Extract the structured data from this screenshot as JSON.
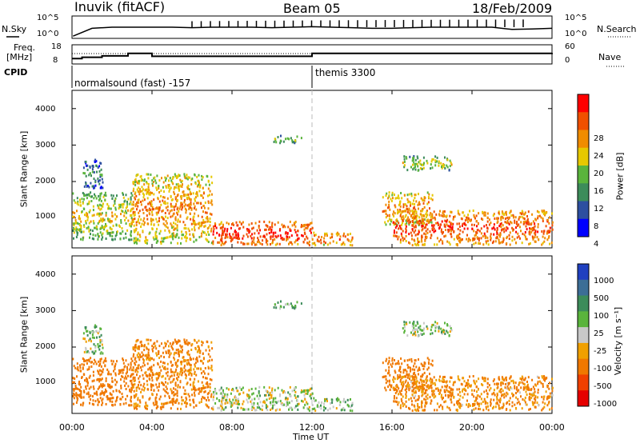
{
  "header": {
    "station": "Inuvik (fitACF)",
    "beam": "Beam 05",
    "date": "18/Feb/2009"
  },
  "noise_panel": {
    "left_label": "N.Sky",
    "right_label": "N.Search",
    "left_ticks": [
      "10^5",
      "10^0"
    ],
    "right_ticks": [
      "10^5",
      "10^0"
    ]
  },
  "freq_panel": {
    "left_label_1": "Freq.",
    "left_label_2": "[MHz]",
    "right_label": "Nave",
    "left_ticks": [
      "18",
      "8"
    ],
    "right_ticks": [
      "60",
      "0"
    ]
  },
  "cpid_panel": {
    "label": "CPID",
    "mode_1": "normalsound (fast) -157",
    "mode_2": "themis 3300"
  },
  "power_panel": {
    "ylabel": "Slant Range [km]",
    "yticks": [
      "1000",
      "2000",
      "3000",
      "4000"
    ],
    "colorbar_label": "Power [dB]",
    "colorbar_ticks": [
      "4",
      "8",
      "12",
      "16",
      "20",
      "24",
      "28"
    ],
    "colorbar_colors": [
      "#0000ff",
      "#2d4fa0",
      "#3c8c5a",
      "#5ab43c",
      "#e6c800",
      "#f08c00",
      "#f05000",
      "#ff0000"
    ]
  },
  "velocity_panel": {
    "ylabel": "Slant Range [km]",
    "yticks": [
      "1000",
      "2000",
      "3000",
      "4000"
    ],
    "colorbar_label": "Velocity [m s⁻¹]",
    "colorbar_ticks": [
      "1000",
      "500",
      "100",
      "25",
      "-25",
      "-100",
      "-500",
      "-1000"
    ],
    "colorbar_colors": [
      "#2040c0",
      "#3c6e96",
      "#3c8c5a",
      "#5ab43c",
      "#c8c8c8",
      "#f0a000",
      "#f07800",
      "#f04000",
      "#e60000"
    ]
  },
  "xaxis": {
    "ticks": [
      "00:00",
      "04:00",
      "08:00",
      "12:00",
      "16:00",
      "20:00",
      "00:00"
    ],
    "label": "Time UT"
  },
  "chart_data": {
    "type": "heatmap",
    "x_range_hours": [
      0,
      24
    ],
    "y_range_km": [
      180,
      4500
    ],
    "mode_change_time": "12:00",
    "echo_regions": [
      {
        "t0": 0.0,
        "t1": 3.0,
        "r0": 400,
        "r1": 1700,
        "power": 14,
        "velocity": -200
      },
      {
        "t0": 0.5,
        "t1": 1.5,
        "r0": 1800,
        "r1": 2600,
        "power": 6,
        "velocity": 50
      },
      {
        "t0": 3.0,
        "t1": 7.0,
        "r0": 300,
        "r1": 2200,
        "power": 18,
        "velocity": -150
      },
      {
        "t0": 7.0,
        "t1": 12.0,
        "r0": 250,
        "r1": 900,
        "power": 24,
        "velocity": 20
      },
      {
        "t0": 10.0,
        "t1": 11.5,
        "r0": 3050,
        "r1": 3250,
        "power": 10,
        "velocity": 80
      },
      {
        "t0": 12.0,
        "t1": 14.0,
        "r0": 250,
        "r1": 600,
        "power": 20,
        "velocity": 60
      },
      {
        "t0": 15.5,
        "t1": 18.0,
        "r0": 800,
        "r1": 1700,
        "power": 18,
        "velocity": -300
      },
      {
        "t0": 16.0,
        "t1": 24.0,
        "r0": 250,
        "r1": 1200,
        "power": 22,
        "velocity": -120
      },
      {
        "t0": 16.5,
        "t1": 19.0,
        "r0": 2300,
        "r1": 2700,
        "power": 12,
        "velocity": 40
      }
    ],
    "noise_sky_hours": [
      0.05,
      1.0,
      2.0,
      3.0,
      4.0,
      5.0,
      6.0,
      7.0,
      8.0,
      9.0,
      10.0,
      11.0,
      12.0,
      13.0,
      14.0,
      15.0,
      16.0,
      17.0,
      18.0,
      19.0,
      20.0,
      21.0,
      22.0,
      23.0,
      24.0
    ],
    "noise_sky_level": [
      0.1,
      0.45,
      0.5,
      0.5,
      0.5,
      0.5,
      0.48,
      0.5,
      0.5,
      0.5,
      0.48,
      0.5,
      0.52,
      0.5,
      0.48,
      0.45,
      0.45,
      0.48,
      0.5,
      0.5,
      0.5,
      0.5,
      0.4,
      0.42,
      0.45
    ],
    "freq_mhz_hours": [
      0,
      0.5,
      1.5,
      2.8,
      4.0,
      12.0,
      24.0
    ],
    "freq_mhz": [
      10.8,
      11.5,
      12.2,
      13.5,
      12.0,
      13.5,
      13.8
    ]
  }
}
